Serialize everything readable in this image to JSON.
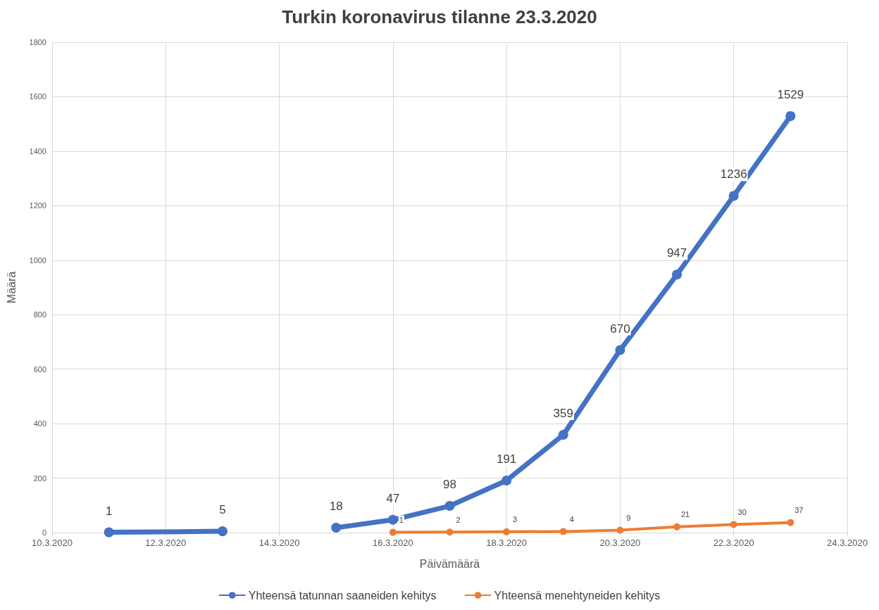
{
  "chart_data": {
    "type": "line",
    "title": "Turkin koronavirus tilanne 23.3.2020",
    "xlabel": "Päivämäärä",
    "ylabel": "Määrä",
    "xlim": [
      "2020-03-10",
      "2020-03-24"
    ],
    "xticks": [
      {
        "value": "2020-03-10",
        "label": "10.3.2020"
      },
      {
        "value": "2020-03-12",
        "label": "12.3.2020"
      },
      {
        "value": "2020-03-14",
        "label": "14.3.2020"
      },
      {
        "value": "2020-03-16",
        "label": "16.3.2020"
      },
      {
        "value": "2020-03-18",
        "label": "18.3.2020"
      },
      {
        "value": "2020-03-20",
        "label": "20.3.2020"
      },
      {
        "value": "2020-03-22",
        "label": "22.3.2020"
      },
      {
        "value": "2020-03-24",
        "label": "24.3.2020"
      }
    ],
    "ylim": [
      0,
      1800
    ],
    "yticks": [
      0,
      200,
      400,
      600,
      800,
      1000,
      1200,
      1400,
      1600,
      1800
    ],
    "series": [
      {
        "name": "Yhteensä tatunnan saaneiden kehitys",
        "color": "#4472c4",
        "x": [
          "2020-03-11",
          "2020-03-13",
          "2020-03-14",
          "2020-03-15",
          "2020-03-16",
          "2020-03-17",
          "2020-03-18",
          "2020-03-19",
          "2020-03-20",
          "2020-03-21",
          "2020-03-22",
          "2020-03-23"
        ],
        "values": [
          1,
          5,
          null,
          18,
          47,
          98,
          191,
          359,
          670,
          947,
          1236,
          1529
        ]
      },
      {
        "name": "Yhteensä menehtyneiden kehitys",
        "color": "#ed7d31",
        "x": [
          "2020-03-16",
          "2020-03-17",
          "2020-03-18",
          "2020-03-19",
          "2020-03-20",
          "2020-03-21",
          "2020-03-22",
          "2020-03-23"
        ],
        "values": [
          1,
          2,
          3,
          4,
          9,
          21,
          30,
          37
        ]
      }
    ],
    "data_labels": true,
    "grid": true,
    "legend": "bottom",
    "marker": "circle",
    "line_style": "solid"
  }
}
